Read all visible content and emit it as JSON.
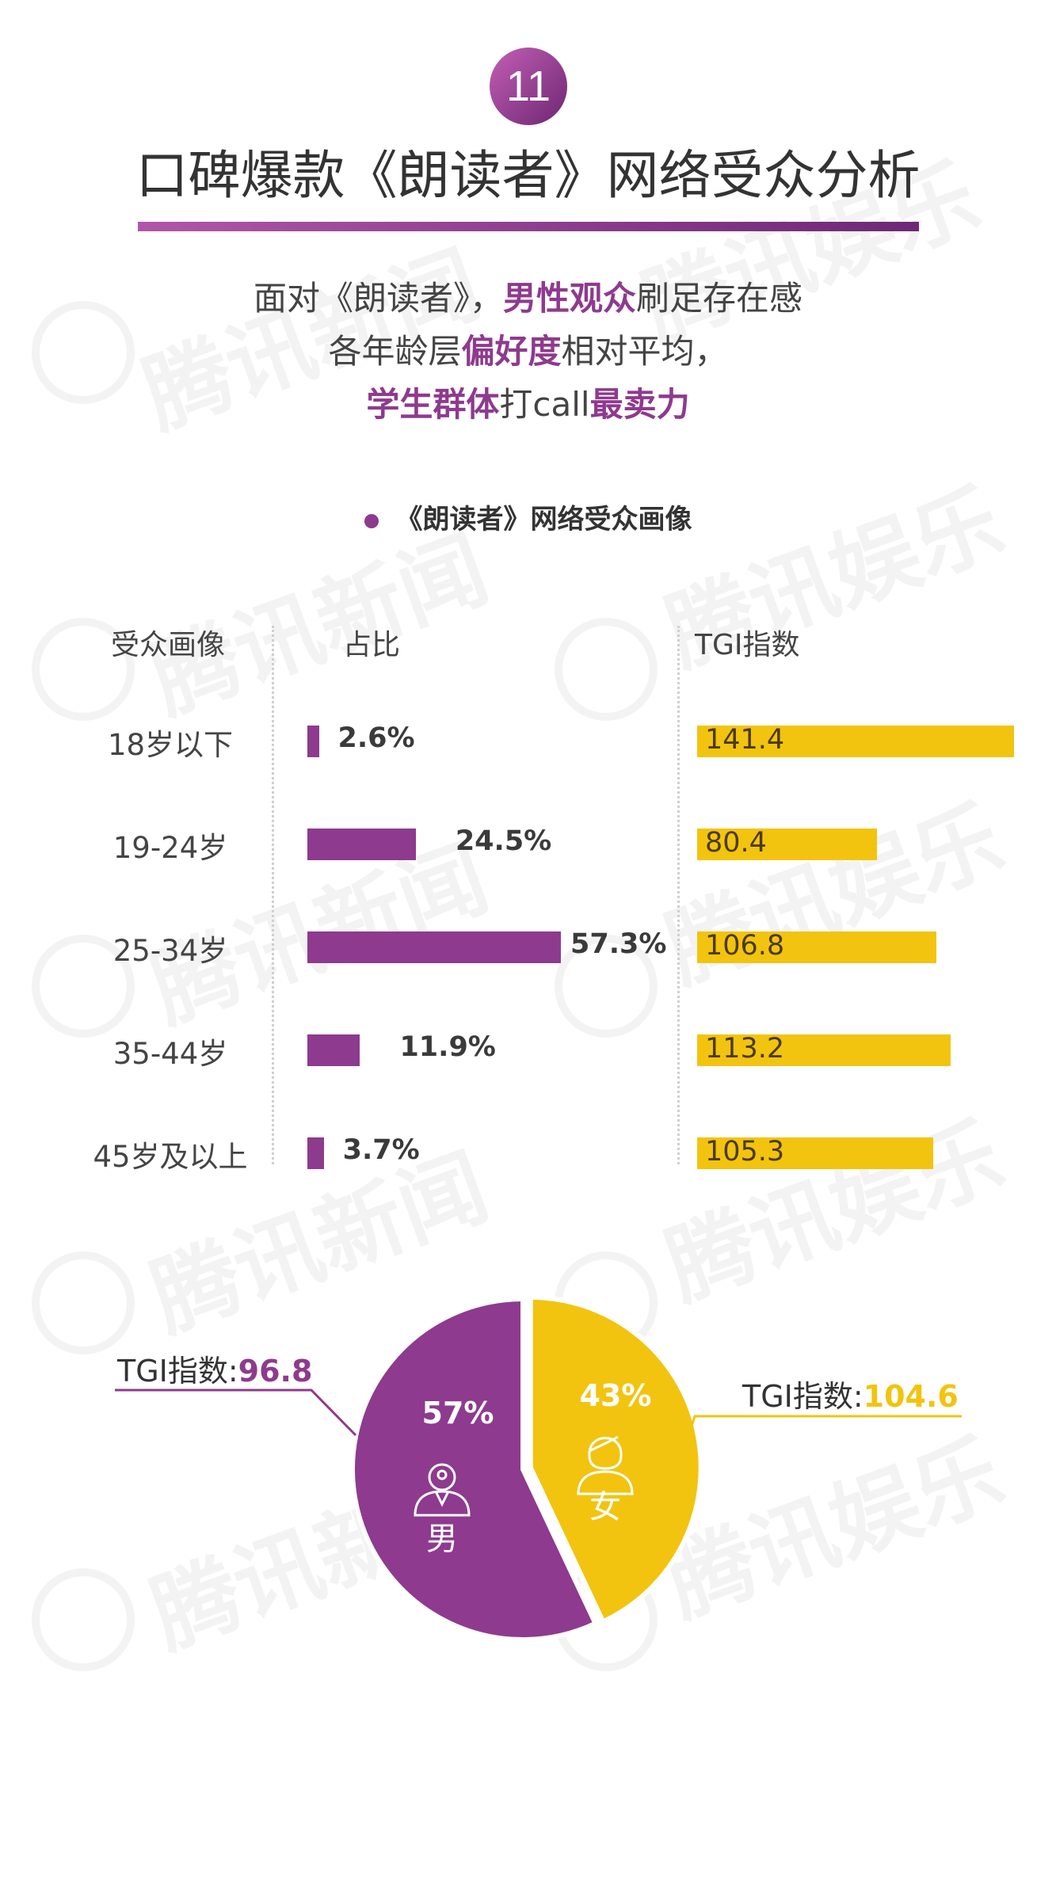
{
  "badge_number": "11",
  "title": "口碑爆款《朗读者》网络受众分析",
  "summary": {
    "line1": {
      "a": "面对《朗读者》，",
      "b": "男性观众",
      "c": "刷足存在感"
    },
    "line2": {
      "a": "各年龄层",
      "b": "偏好度",
      "c": "相对平均，"
    },
    "line3": {
      "a": "学生群体",
      "b": "打call",
      "c": "最卖力"
    }
  },
  "section_title": "《朗读者》网络受众画像",
  "watermark_text": "腾讯新闻",
  "watermark_text2": "腾讯娱乐",
  "colors": {
    "accent_purple": "#8e3a8e",
    "accent_yellow": "#f2c40f"
  },
  "chart_data": [
    {
      "type": "bar",
      "orientation": "horizontal",
      "columns": [
        "受众画像",
        "占比",
        "TGI指数"
      ],
      "categories": [
        "18岁以下",
        "19-24岁",
        "25-34岁",
        "35-44岁",
        "45岁及以上"
      ],
      "series": [
        {
          "name": "占比",
          "values": [
            2.6,
            24.5,
            57.3,
            11.9,
            3.7
          ],
          "labels": [
            "2.6%",
            "24.5%",
            "57.3%",
            "11.9%",
            "3.7%"
          ],
          "color": "#8e3a8e"
        },
        {
          "name": "TGI指数",
          "values": [
            141.4,
            80.4,
            106.8,
            113.2,
            105.3
          ],
          "labels": [
            "141.4",
            "80.4",
            "106.8",
            "113.2",
            "105.3"
          ],
          "color": "#f2c40f"
        }
      ]
    },
    {
      "type": "pie",
      "slices": [
        {
          "label": "男",
          "value": 57,
          "value_label": "57%",
          "color": "#8e3a8e",
          "tgi_caption": "TGI指数:",
          "tgi_value": "96.8",
          "icon": "male-user-icon"
        },
        {
          "label": "女",
          "value": 43,
          "value_label": "43%",
          "color": "#f2c40f",
          "tgi_caption": "TGI指数:",
          "tgi_value": "104.6",
          "icon": "female-user-icon"
        }
      ]
    }
  ]
}
